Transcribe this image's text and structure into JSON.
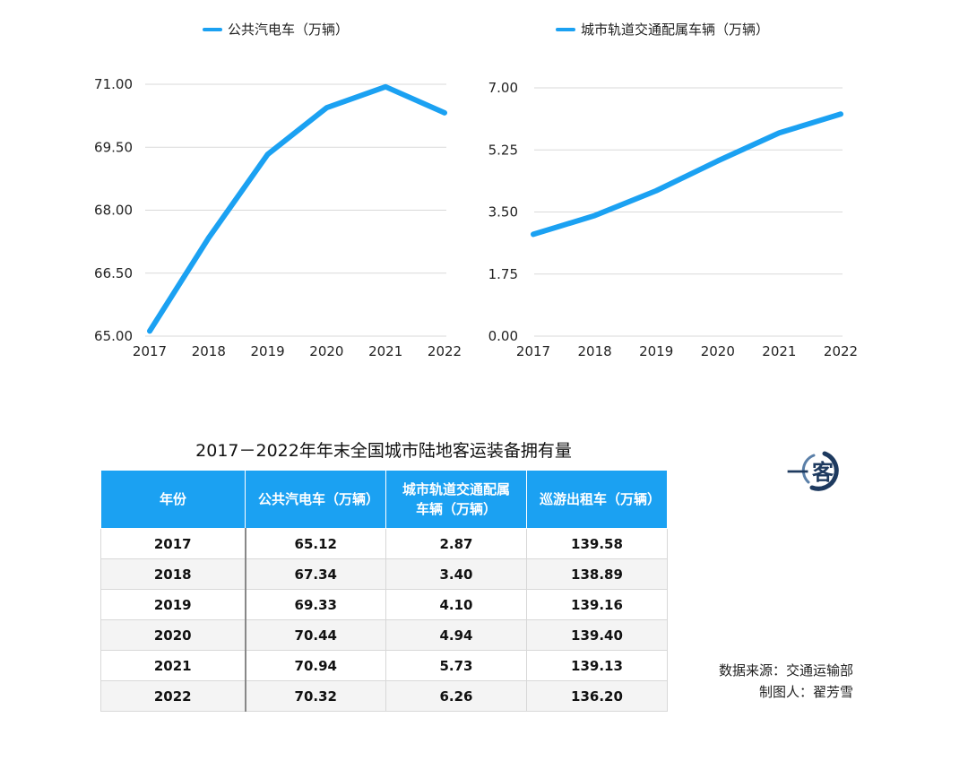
{
  "chart_data": [
    {
      "type": "line",
      "legend": "公共汽电车（万辆）",
      "x": [
        "2017",
        "2018",
        "2019",
        "2020",
        "2021",
        "2022"
      ],
      "values": [
        65.12,
        67.34,
        69.33,
        70.44,
        70.94,
        70.32
      ],
      "ylim": [
        65,
        71
      ],
      "yticks": [
        "65.00",
        "66.50",
        "68.00",
        "69.50",
        "71.00"
      ],
      "color": "#1ba1f2",
      "grid": true,
      "legend_position": "top"
    },
    {
      "type": "line",
      "legend": "城市轨道交通配属车辆（万辆）",
      "x": [
        "2017",
        "2018",
        "2019",
        "2020",
        "2021",
        "2022"
      ],
      "values": [
        2.87,
        3.4,
        4.1,
        4.94,
        5.73,
        6.26
      ],
      "ylim": [
        0,
        7
      ],
      "yticks": [
        "0.00",
        "1.75",
        "3.50",
        "5.25",
        "7.00"
      ],
      "color": "#1ba1f2",
      "grid": true,
      "legend_position": "top"
    }
  ],
  "table": {
    "title": "2017－2022年年末全国城市陆地客运装备拥有量",
    "headers": [
      "年份",
      "公共汽电车（万辆）",
      "城市轨道交通配属车辆（万辆）",
      "巡游出租车（万辆）"
    ],
    "rows": [
      [
        "2017",
        "65.12",
        "2.87",
        "139.58"
      ],
      [
        "2018",
        "67.34",
        "3.40",
        "138.89"
      ],
      [
        "2019",
        "69.33",
        "4.10",
        "139.16"
      ],
      [
        "2020",
        "70.44",
        "4.94",
        "139.40"
      ],
      [
        "2021",
        "70.94",
        "5.73",
        "139.13"
      ],
      [
        "2022",
        "70.32",
        "6.26",
        "136.20"
      ]
    ]
  },
  "logo": {
    "text": "一客",
    "color": "#1e3a5f"
  },
  "source": {
    "line1": "数据来源：交通运输部",
    "line2": "制图人：翟芳雪"
  }
}
